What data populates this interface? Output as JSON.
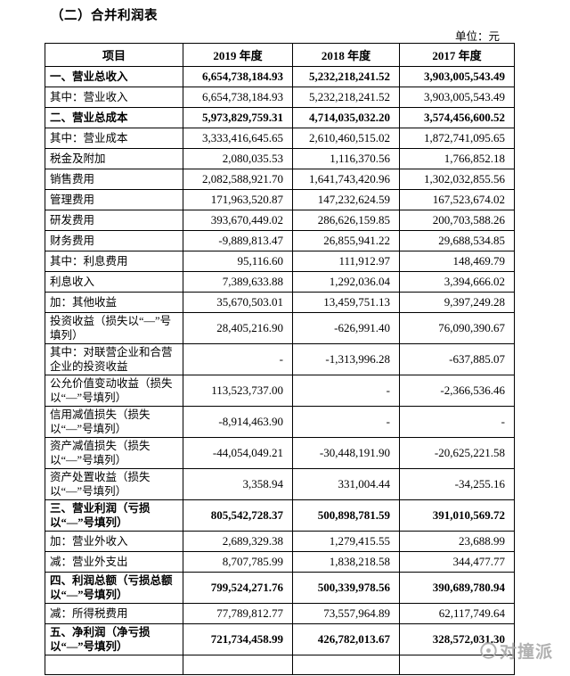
{
  "page": {
    "title": "（二）合并利润表",
    "unit_label": "单位：元",
    "watermark_text": "对撞派",
    "colors": {
      "border": "#000000",
      "watermark_gray": "#a9a9a9",
      "background": "#ffffff"
    }
  },
  "table": {
    "headers": [
      "项目",
      "2019 年度",
      "2018 年度",
      "2017 年度"
    ],
    "rows": [
      {
        "label": "一、营业总收入",
        "v2019": "6,654,738,184.93",
        "v2018": "5,232,218,241.52",
        "v2017": "3,903,005,543.49",
        "bold": true
      },
      {
        "label": "其中：营业收入",
        "v2019": "6,654,738,184.93",
        "v2018": "5,232,218,241.52",
        "v2017": "3,903,005,543.49",
        "bold": false
      },
      {
        "label": "二、营业总成本",
        "v2019": "5,973,829,759.31",
        "v2018": "4,714,035,032.20",
        "v2017": "3,574,456,600.52",
        "bold": true
      },
      {
        "label": "其中：营业成本",
        "v2019": "3,333,416,645.65",
        "v2018": "2,610,460,515.02",
        "v2017": "1,872,741,095.65",
        "bold": false
      },
      {
        "label": "税金及附加",
        "v2019": "2,080,035.53",
        "v2018": "1,116,370.56",
        "v2017": "1,766,852.18",
        "bold": false
      },
      {
        "label": "销售费用",
        "v2019": "2,082,588,921.70",
        "v2018": "1,641,743,420.96",
        "v2017": "1,302,032,855.56",
        "bold": false
      },
      {
        "label": "管理费用",
        "v2019": "171,963,520.87",
        "v2018": "147,232,624.59",
        "v2017": "167,523,674.02",
        "bold": false
      },
      {
        "label": "研发费用",
        "v2019": "393,670,449.02",
        "v2018": "286,626,159.85",
        "v2017": "200,703,588.26",
        "bold": false
      },
      {
        "label": "财务费用",
        "v2019": "-9,889,813.47",
        "v2018": "26,855,941.22",
        "v2017": "29,688,534.85",
        "bold": false
      },
      {
        "label": "其中：利息费用",
        "v2019": "95,116.60",
        "v2018": "111,912.97",
        "v2017": "148,469.79",
        "bold": false
      },
      {
        "label": "利息收入",
        "v2019": "7,389,633.88",
        "v2018": "1,292,036.04",
        "v2017": "3,394,666.02",
        "bold": false
      },
      {
        "label": "加：其他收益",
        "v2019": "35,670,503.01",
        "v2018": "13,459,751.13",
        "v2017": "9,397,249.28",
        "bold": false
      },
      {
        "label": "投资收益（损失以“—”号填列）",
        "v2019": "28,405,216.90",
        "v2018": "-626,991.40",
        "v2017": "76,090,390.67",
        "bold": false
      },
      {
        "label": "其中：对联营企业和合营企业的投资收益",
        "v2019": "-",
        "v2018": "-1,313,996.28",
        "v2017": "-637,885.07",
        "bold": false
      },
      {
        "label": "公允价值变动收益（损失以“—”号填列）",
        "v2019": "113,523,737.00",
        "v2018": "-",
        "v2017": "-2,366,536.46",
        "bold": false
      },
      {
        "label": "信用减值损失（损失以“—”号填列）",
        "v2019": "-8,914,463.90",
        "v2018": "-",
        "v2017": "-",
        "bold": false
      },
      {
        "label": "资产减值损失（损失以“—”号填列）",
        "v2019": "-44,054,049.21",
        "v2018": "-30,448,191.90",
        "v2017": "-20,625,221.58",
        "bold": false
      },
      {
        "label": "资产处置收益（损失以“—”号填列）",
        "v2019": "3,358.94",
        "v2018": "331,004.44",
        "v2017": "-34,255.16",
        "bold": false
      },
      {
        "label": "三、营业利润（亏损以“—”号填列）",
        "v2019": "805,542,728.37",
        "v2018": "500,898,781.59",
        "v2017": "391,010,569.72",
        "bold": true
      },
      {
        "label": "加：营业外收入",
        "v2019": "2,689,329.38",
        "v2018": "1,279,415.55",
        "v2017": "23,688.99",
        "bold": false
      },
      {
        "label": "减：营业外支出",
        "v2019": "8,707,785.99",
        "v2018": "1,838,218.58",
        "v2017": "344,477.77",
        "bold": false
      },
      {
        "label": "四、利润总额（亏损总额以“—”号填列）",
        "v2019": "799,524,271.76",
        "v2018": "500,339,978.56",
        "v2017": "390,689,780.94",
        "bold": true
      },
      {
        "label": "减：所得税费用",
        "v2019": "77,789,812.77",
        "v2018": "73,557,964.89",
        "v2017": "62,117,749.64",
        "bold": false
      },
      {
        "label": "五、净利润（净亏损以“—”号填列）",
        "v2019": "721,734,458.99",
        "v2018": "426,782,013.67",
        "v2017": "328,572,031.30",
        "bold": true
      }
    ]
  }
}
